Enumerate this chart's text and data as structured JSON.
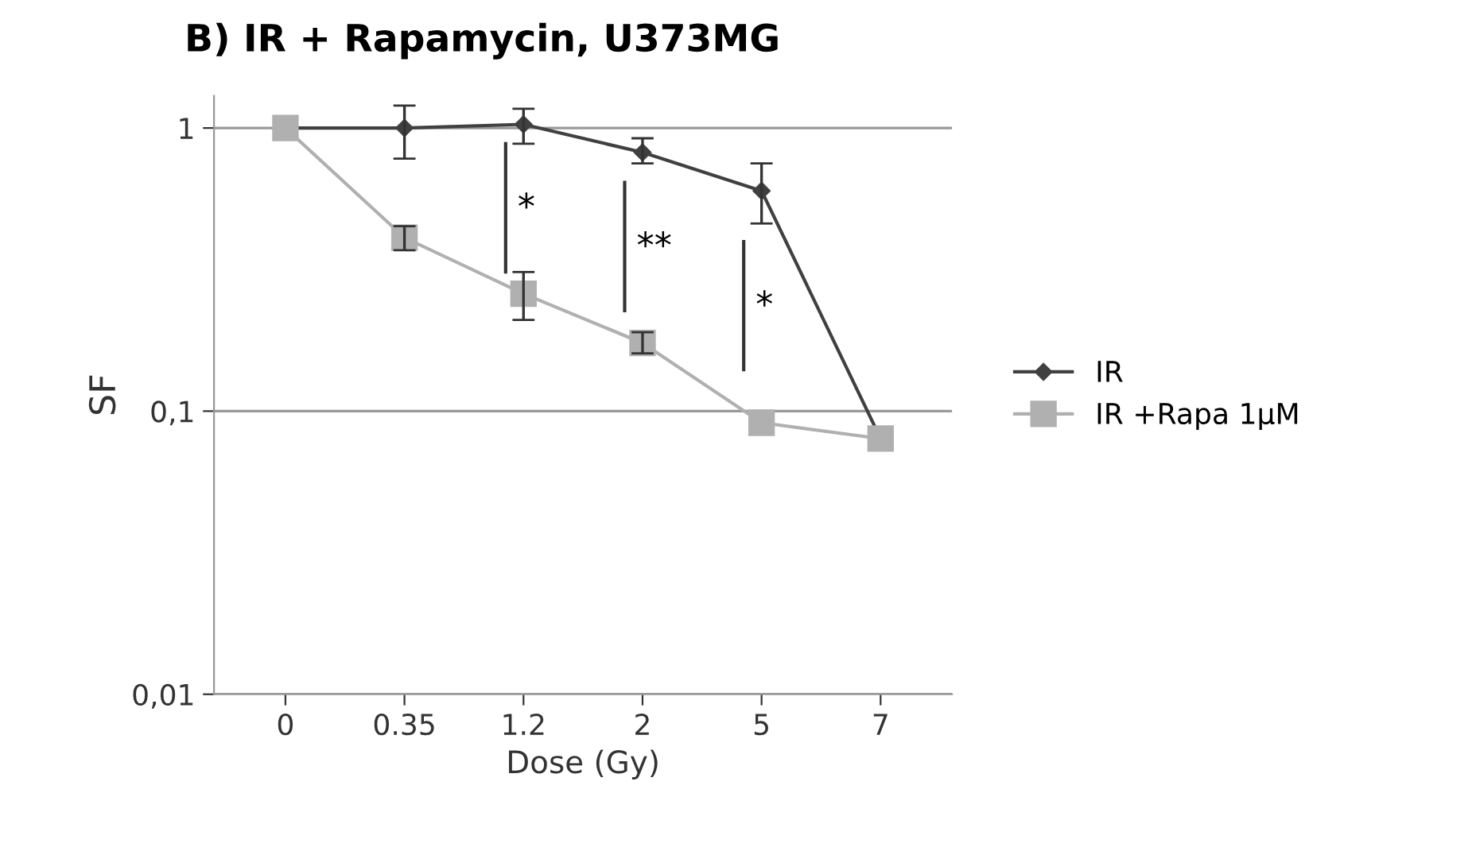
{
  "chart_data": {
    "type": "line",
    "title": "B) IR + Rapamycin, U373MG",
    "xlabel": "Dose (Gy)",
    "ylabel": "SF",
    "categories": [
      "0",
      "0.35",
      "1.2",
      "2",
      "5",
      "7"
    ],
    "series": [
      {
        "name": "IR",
        "color": "#404040",
        "marker": "diamond",
        "values": [
          1,
          1.0,
          1.03,
          0.82,
          0.6,
          0.08
        ],
        "errors": [
          null,
          [
            0.78,
            1.2
          ],
          [
            0.88,
            1.17
          ],
          [
            0.75,
            0.92
          ],
          [
            0.46,
            0.75
          ],
          null
        ]
      },
      {
        "name": "IR +Rapa 1µM",
        "color": "#b0b0b0",
        "marker": "square",
        "values": [
          1,
          0.41,
          0.26,
          0.174,
          0.091,
          0.08
        ],
        "errors": [
          null,
          [
            0.37,
            0.45
          ],
          [
            0.21,
            0.31
          ],
          [
            0.16,
            0.19
          ],
          null,
          null
        ]
      }
    ],
    "log": "y",
    "ylim": [
      0.01,
      1.3
    ],
    "yticks": [
      {
        "value": 0.01,
        "label": "0,01"
      },
      {
        "value": 0.1,
        "label": "0,1"
      },
      {
        "value": 1,
        "label": "1"
      }
    ],
    "grid": "y",
    "legend": "right",
    "annotations": [
      "*",
      "**",
      "*"
    ]
  }
}
